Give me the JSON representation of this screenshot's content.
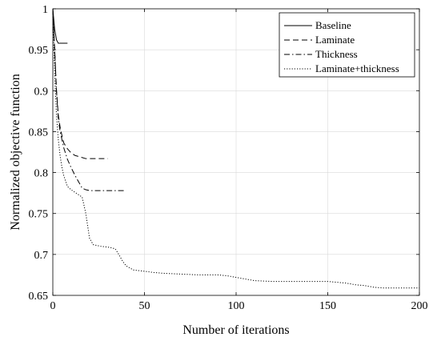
{
  "chart_data": {
    "type": "line",
    "xlabel": "Number of iterations",
    "ylabel": "Normalized objective function",
    "xlim": [
      0,
      200
    ],
    "ylim": [
      0.65,
      1.0
    ],
    "xticks": [
      0,
      50,
      100,
      150,
      200
    ],
    "yticks": [
      0.65,
      0.7,
      0.75,
      0.8,
      0.85,
      0.9,
      0.95,
      1
    ],
    "xtick_labels": [
      "0",
      "50",
      "100",
      "150",
      "200"
    ],
    "ytick_labels": [
      "0.65",
      "0.7",
      "0.75",
      "0.8",
      "0.85",
      "0.9",
      "0.95",
      "1"
    ],
    "grid": true,
    "legend_position": "top-right",
    "series": [
      {
        "name": "Baseline",
        "style": "solid",
        "x": [
          0,
          1,
          2,
          3,
          4,
          6,
          8
        ],
        "y": [
          1.0,
          0.975,
          0.962,
          0.958,
          0.958,
          0.958,
          0.958
        ]
      },
      {
        "name": "Laminate",
        "style": "dashed",
        "x": [
          0,
          1,
          2,
          3,
          4,
          5,
          6,
          8,
          10,
          12,
          15,
          18,
          22,
          26,
          30
        ],
        "y": [
          1.0,
          0.95,
          0.9,
          0.87,
          0.855,
          0.845,
          0.836,
          0.829,
          0.824,
          0.821,
          0.819,
          0.817,
          0.817,
          0.817,
          0.817
        ]
      },
      {
        "name": "Thickness",
        "style": "dashdot",
        "x": [
          0,
          1,
          2,
          3,
          4,
          5,
          6,
          8,
          10,
          12,
          14,
          16,
          18,
          20,
          24,
          30,
          35,
          40
        ],
        "y": [
          1.0,
          0.95,
          0.9,
          0.865,
          0.85,
          0.84,
          0.83,
          0.816,
          0.806,
          0.797,
          0.789,
          0.781,
          0.779,
          0.778,
          0.778,
          0.778,
          0.778,
          0.778
        ]
      },
      {
        "name": "Laminate+thickness",
        "style": "dotted",
        "x": [
          0,
          1,
          2,
          3,
          4,
          5,
          6,
          8,
          10,
          12,
          14,
          16,
          18,
          19,
          20,
          22,
          24,
          26,
          30,
          34,
          36,
          38,
          40,
          44,
          48,
          55,
          60,
          70,
          80,
          90,
          95,
          100,
          105,
          110,
          120,
          130,
          140,
          150,
          155,
          160,
          165,
          170,
          175,
          180,
          190,
          200
        ],
        "y": [
          1.0,
          0.92,
          0.87,
          0.84,
          0.82,
          0.806,
          0.796,
          0.783,
          0.779,
          0.776,
          0.773,
          0.77,
          0.75,
          0.735,
          0.72,
          0.712,
          0.711,
          0.71,
          0.709,
          0.707,
          0.7,
          0.692,
          0.686,
          0.681,
          0.68,
          0.678,
          0.677,
          0.676,
          0.675,
          0.675,
          0.674,
          0.672,
          0.67,
          0.668,
          0.667,
          0.667,
          0.667,
          0.667,
          0.666,
          0.665,
          0.663,
          0.662,
          0.66,
          0.659,
          0.659,
          0.659
        ]
      }
    ]
  }
}
